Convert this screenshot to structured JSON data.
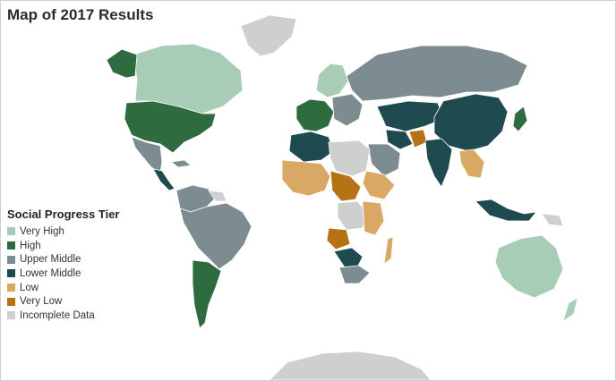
{
  "title": "Map of 2017 Results",
  "legend": {
    "title": "Social Progress Tier",
    "items": [
      {
        "label": "Very High",
        "color": "#a8cdb6"
      },
      {
        "label": "High",
        "color": "#2e6b3f"
      },
      {
        "label": "Upper Middle",
        "color": "#7d8c91"
      },
      {
        "label": "Lower Middle",
        "color": "#1f4a4f"
      },
      {
        "label": "Low",
        "color": "#d9a865"
      },
      {
        "label": "Very Low",
        "color": "#b57314"
      },
      {
        "label": "Incomplete Data",
        "color": "#cfcfcf"
      }
    ]
  }
}
